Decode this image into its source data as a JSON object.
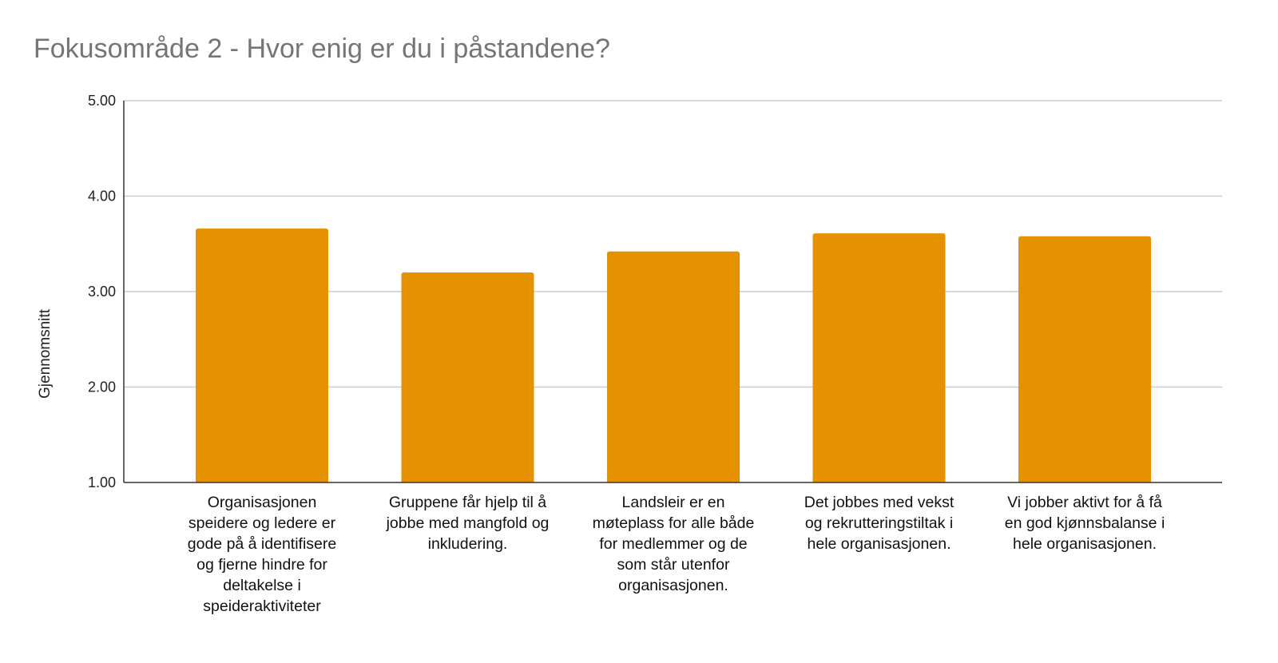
{
  "title": "Fokusområde 2 - Hvor enig er du i påstandene?",
  "chart_data": {
    "type": "bar",
    "title": "Fokusområde 2 - Hvor enig er du i påstandene?",
    "xlabel": "",
    "ylabel": "Gjennomsnitt",
    "ylim": [
      1.0,
      5.0
    ],
    "yticks": [
      "1.00",
      "2.00",
      "3.00",
      "4.00",
      "5.00"
    ],
    "ytick_values": [
      1,
      2,
      3,
      4,
      5
    ],
    "grid": true,
    "color": "#E69100",
    "categories": [
      "Organisasjonen\nspeidere og ledere er\ngode på å identifisere\nog fjerne hindre for\ndeltakelse i\nspeideraktiviteter",
      "Gruppene får hjelp til å\njobbe med mangfold og\ninkludering.",
      "Landsleir er en\nmøteplass for alle både\nfor medlemmer og de\nsom står utenfor\norganisasjonen.",
      "Det jobbes med vekst\nog rekrutteringstiltak i\nhele organisasjonen.",
      "Vi jobber aktivt for å få\nen god kjønnsbalanse i\nhele organisasjonen."
    ],
    "values": [
      3.66,
      3.2,
      3.42,
      3.61,
      3.58
    ]
  }
}
